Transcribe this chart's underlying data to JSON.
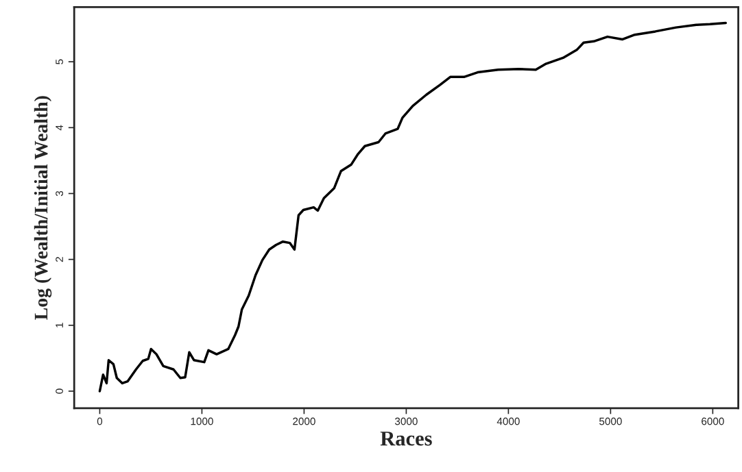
{
  "chart_data": {
    "type": "line",
    "xlabel": "Races",
    "ylabel": "Log (Wealth/Initial Wealth)",
    "xlim": [
      -250,
      6250
    ],
    "ylim": [
      -0.26,
      5.83
    ],
    "xticks": [
      0,
      1000,
      2000,
      3000,
      4000,
      5000,
      6000
    ],
    "yticks": [
      0,
      1,
      2,
      3,
      4,
      5
    ],
    "grid": false,
    "marker": "none",
    "line_style": "solid",
    "series": [
      {
        "color": "#000000",
        "x": [
          0,
          33,
          67,
          87,
          134,
          167,
          221,
          274,
          355,
          421,
          475,
          502,
          555,
          622,
          722,
          789,
          836,
          876,
          923,
          1023,
          1064,
          1144,
          1258,
          1324,
          1358,
          1391,
          1458,
          1525,
          1592,
          1659,
          1726,
          1793,
          1860,
          1906,
          1946,
          1993,
          2094,
          2134,
          2194,
          2294,
          2361,
          2462,
          2528,
          2595,
          2729,
          2796,
          2916,
          2963,
          3064,
          3197,
          3331,
          3431,
          3565,
          3699,
          3900,
          4100,
          4268,
          4368,
          4535,
          4669,
          4736,
          4836,
          4970,
          5117,
          5237,
          5438,
          5639,
          5839,
          5973,
          6127
        ],
        "values": [
          0,
          0.25,
          0.12,
          0.47,
          0.41,
          0.2,
          0.12,
          0.15,
          0.33,
          0.46,
          0.49,
          0.64,
          0.56,
          0.38,
          0.33,
          0.2,
          0.21,
          0.59,
          0.47,
          0.44,
          0.62,
          0.56,
          0.64,
          0.85,
          0.98,
          1.24,
          1.45,
          1.76,
          1.99,
          2.15,
          2.22,
          2.27,
          2.25,
          2.15,
          2.67,
          2.75,
          2.79,
          2.74,
          2.93,
          3.08,
          3.34,
          3.44,
          3.6,
          3.72,
          3.78,
          3.91,
          3.98,
          4.15,
          4.33,
          4.5,
          4.65,
          4.77,
          4.77,
          4.84,
          4.88,
          4.89,
          4.88,
          4.97,
          5.06,
          5.18,
          5.29,
          5.31,
          5.38,
          5.34,
          5.41,
          5.46,
          5.52,
          5.56,
          5.57,
          5.59
        ]
      }
    ]
  }
}
